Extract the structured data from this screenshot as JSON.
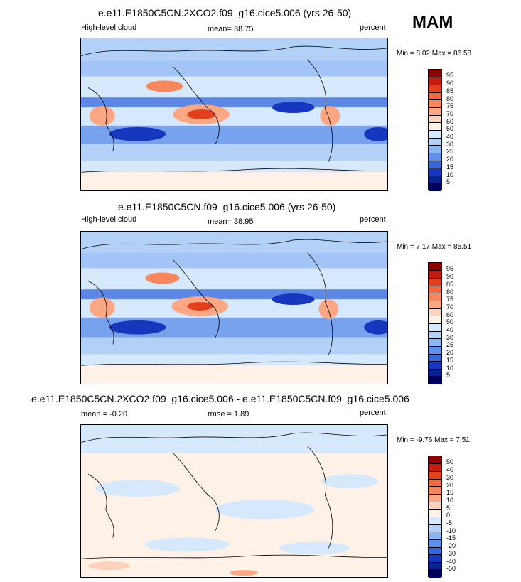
{
  "season_label": "MAM",
  "panels": [
    {
      "title": "e.e11.E1850C5CN.2XCO2.f09_g16.cice5.006 (yrs 26-50)",
      "left_label": "High-level cloud",
      "center_label": "mean=  38.75",
      "right_label": "percent",
      "minmax": "Min =   8.02 Max =  86.58",
      "colorbar_labels": [
        "95",
        "90",
        "85",
        "80",
        "75",
        "70",
        "60",
        "50",
        "40",
        "30",
        "25",
        "20",
        "15",
        "10",
        "5"
      ]
    },
    {
      "title": "e.e11.E1850C5CN.f09_g16.cice5.006 (yrs 26-50)",
      "left_label": "High-level cloud",
      "center_label": "mean=  38.95",
      "right_label": "percent",
      "minmax": "Min =   7.17 Max =  85.51",
      "colorbar_labels": [
        "95",
        "90",
        "85",
        "80",
        "75",
        "70",
        "60",
        "50",
        "40",
        "30",
        "25",
        "20",
        "15",
        "10",
        "5"
      ]
    },
    {
      "title": "e.e11.E1850C5CN.2XCO2.f09_g16.cice5.006 - e.e11.E1850C5CN.f09_g16.cice5.006",
      "left_label": "mean =  -0.20",
      "center_label": "rmse =   1.89",
      "right_label": "percent",
      "minmax": "Min =  -9.76 Max =   7.51",
      "colorbar_labels": [
        "50",
        "40",
        "30",
        "20",
        "15",
        "10",
        "5",
        "0",
        "-5",
        "-10",
        "-15",
        "-20",
        "-30",
        "-40",
        "-50"
      ]
    }
  ],
  "colors": {
    "colorbar": [
      "#8b0000",
      "#c21a0c",
      "#e2401c",
      "#f2663a",
      "#f6875c",
      "#fba784",
      "#fdd2bb",
      "#fdf1e8",
      "#d6e8fb",
      "#b3d1f7",
      "#8cb5f3",
      "#5f90ea",
      "#3467dc",
      "#1737bf",
      "#08228f",
      "#00005c"
    ],
    "ocean_light": "#dbe9fb",
    "coast": "#000000"
  }
}
